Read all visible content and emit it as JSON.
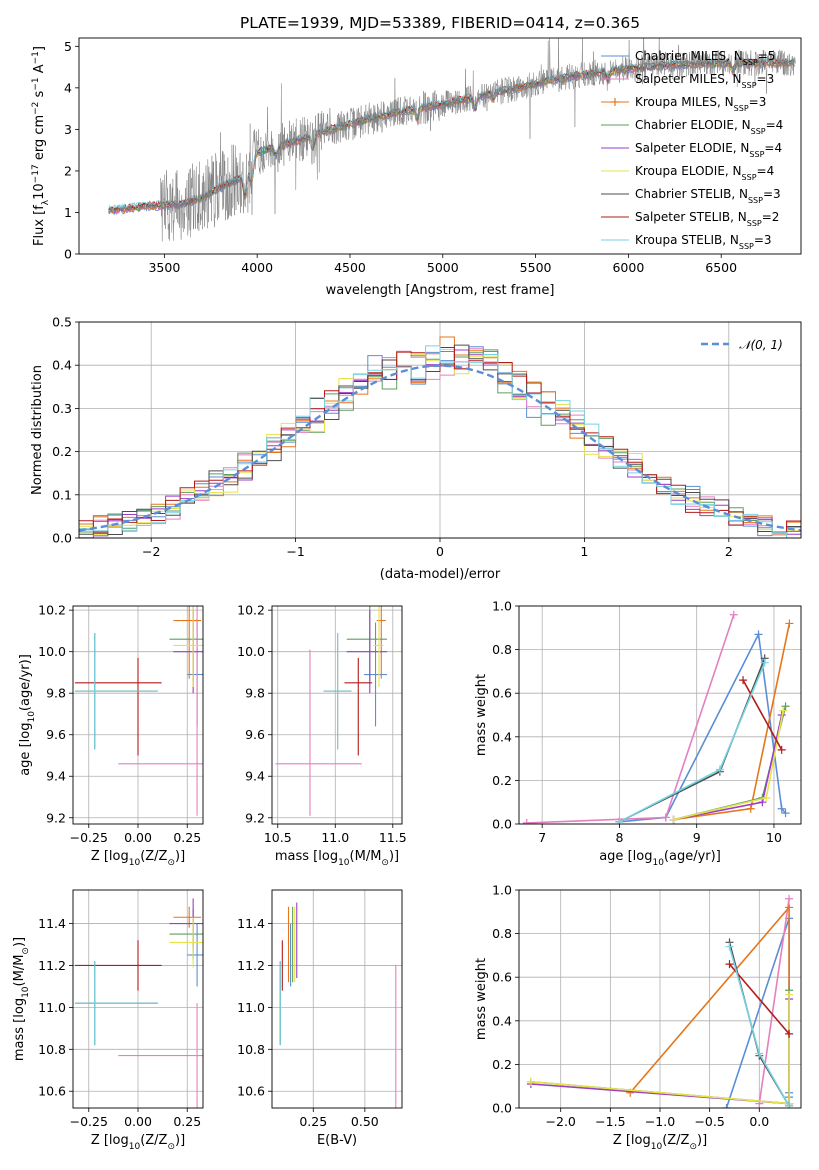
{
  "title": "PLATE=1939, MJD=53389, FIBERID=0414, z=0.365",
  "colors": {
    "data": "#808080",
    "Chabrier MILES": "#5b8ed6",
    "Salpeter MILES": "#e67fc1",
    "Kroupa MILES": "#e6761c",
    "Chabrier ELODIE": "#5f9e5f",
    "Salpeter ELODIE": "#9a3fc8",
    "Kroupa ELODIE": "#e6e34a",
    "Chabrier STELIB": "#4d4d4d",
    "Salpeter STELIB": "#b31b1b",
    "Kroupa STELIB": "#76d3e3",
    "gauss": "#5b8ed6"
  },
  "chart_data": [
    {
      "id": "spectrum",
      "type": "line",
      "xlabel": "wavelength [Angstrom, rest frame]",
      "ylabel": "Flux [f",
      "ylabel_sub": "λ",
      "ylabel_rest": "10",
      "ylabel_exp1": "−17",
      "ylabel_mid": " erg cm",
      "ylabel_exp2": "−2",
      "ylabel_mid2": " s",
      "ylabel_exp3": "−1",
      "ylabel_end": " A",
      "ylabel_exp4": "−1",
      "ylabel_close": "]",
      "xlim": [
        3040,
        6930
      ],
      "ylim": [
        0,
        5.2
      ],
      "xticks": [
        "3500",
        "4000",
        "4500",
        "5000",
        "5500",
        "6000",
        "6500"
      ],
      "yticks": [
        "0",
        "1",
        "2",
        "3",
        "4",
        "5"
      ],
      "data_range": [
        3200,
        6900
      ],
      "continuum": [
        [
          3200,
          1.05
        ],
        [
          3400,
          1.15
        ],
        [
          3600,
          1.2
        ],
        [
          3700,
          1.35
        ],
        [
          3800,
          1.6
        ],
        [
          3900,
          1.8
        ],
        [
          3950,
          1.95
        ],
        [
          4000,
          2.45
        ],
        [
          4200,
          2.7
        ],
        [
          4400,
          3.0
        ],
        [
          4600,
          3.25
        ],
        [
          4800,
          3.45
        ],
        [
          5000,
          3.6
        ],
        [
          5200,
          3.8
        ],
        [
          5400,
          4.0
        ],
        [
          5600,
          4.2
        ],
        [
          5800,
          4.35
        ],
        [
          6000,
          4.45
        ],
        [
          6200,
          4.55
        ],
        [
          6500,
          4.6
        ],
        [
          6900,
          4.6
        ]
      ],
      "legend": [
        {
          "name": "Chabrier MILES",
          "N": "5"
        },
        {
          "name": "Salpeter MILES",
          "N": "3"
        },
        {
          "name": "Kroupa MILES",
          "N": "3"
        },
        {
          "name": "Chabrier ELODIE",
          "N": "4"
        },
        {
          "name": "Salpeter ELODIE",
          "N": "4"
        },
        {
          "name": "Kroupa ELODIE",
          "N": "4"
        },
        {
          "name": "Chabrier STELIB",
          "N": "3"
        },
        {
          "name": "Salpeter STELIB",
          "N": "2"
        },
        {
          "name": "Kroupa STELIB",
          "N": "3"
        }
      ],
      "legend_n_label": "N",
      "legend_n_sub": "SSP"
    },
    {
      "id": "residuals",
      "type": "histogram",
      "xlabel": "(data-model)/error",
      "ylabel": "Normed distribution",
      "xlim": [
        -2.5,
        2.5
      ],
      "ylim": [
        0,
        0.5
      ],
      "xticks": [
        -2,
        -1,
        0,
        1,
        2
      ],
      "xtick_labels": [
        "−2",
        "−1",
        "0",
        "1",
        "2"
      ],
      "yticks": [
        "0.0",
        "0.1",
        "0.2",
        "0.3",
        "0.4",
        "0.5"
      ],
      "bin_width": 0.1,
      "legend": "𝒩(0, 1)"
    },
    {
      "id": "age_vs_Z",
      "type": "errorbar",
      "xlabel": "Z [log",
      "xlabel_sub": "10",
      "xlabel_rest": "(Z/Z",
      "xlabel_sub2": "⊙",
      "xlabel_close": ")]",
      "ylabel": "age  [log",
      "ylabel_sub": "10",
      "ylabel_rest": "(age/yr)]",
      "xlim": [
        -0.33,
        0.33
      ],
      "ylim": [
        9.17,
        10.22
      ],
      "xticks": [
        "−0.25",
        "0.00",
        "0.25"
      ],
      "xtick_vals": [
        -0.25,
        0,
        0.25
      ],
      "yticks": [
        "9.2",
        "9.4",
        "9.6",
        "9.8",
        "10.0",
        "10.2"
      ],
      "ytick_vals": [
        9.2,
        9.4,
        9.6,
        9.8,
        10.0,
        10.2
      ],
      "points": [
        {
          "model": "Chabrier MILES",
          "x": 0.3,
          "xerr": [
            0.05,
            0.03
          ],
          "y": 9.89,
          "yerr": [
            0.25,
            0.25
          ]
        },
        {
          "model": "Salpeter MILES",
          "x": 0.3,
          "xerr": [
            0.4,
            0.03
          ],
          "y": 9.46,
          "yerr": [
            0.25,
            0.78
          ]
        },
        {
          "model": "Kroupa MILES",
          "x": 0.26,
          "xerr": [
            0.08,
            0.06
          ],
          "y": 10.15,
          "yerr": [
            0.28,
            0.28
          ]
        },
        {
          "model": "Chabrier ELODIE",
          "x": 0.28,
          "xerr": [
            0.12,
            0.06
          ],
          "y": 10.06,
          "yerr": [
            0.2,
            0.2
          ]
        },
        {
          "model": "Salpeter ELODIE",
          "x": 0.28,
          "xerr": [
            0.1,
            0.06
          ],
          "y": 10.0,
          "yerr": [
            0.2,
            0.2
          ]
        },
        {
          "model": "Kroupa ELODIE",
          "x": 0.28,
          "xerr": [
            0.1,
            0.06
          ],
          "y": 10.03,
          "yerr": [
            0.2,
            0.2
          ]
        },
        {
          "model": "Chabrier STELIB",
          "x": -0.22,
          "xerr": [
            0.1,
            0.32
          ],
          "y": 9.81,
          "yerr": [
            0.28,
            0.28
          ]
        },
        {
          "model": "Salpeter STELIB",
          "x": 0.0,
          "xerr": [
            0.32,
            0.12
          ],
          "y": 9.85,
          "yerr": [
            0.35,
            0.12
          ]
        },
        {
          "model": "Kroupa STELIB",
          "x": -0.22,
          "xerr": [
            0.1,
            0.32
          ],
          "y": 9.81,
          "yerr": [
            0.28,
            0.28
          ]
        }
      ]
    },
    {
      "id": "age_vs_mass",
      "type": "errorbar",
      "xlabel": "mass [log",
      "xlabel_sub": "10",
      "xlabel_rest": "(M/M",
      "xlabel_sub2": "⊙",
      "xlabel_close": ")]",
      "xlim": [
        10.45,
        11.58
      ],
      "ylim": [
        9.17,
        10.22
      ],
      "xticks": [
        "10.5",
        "11.0",
        "11.5"
      ],
      "xtick_vals": [
        10.5,
        11.0,
        11.5
      ],
      "yticks": [
        "9.2",
        "9.4",
        "9.6",
        "9.8",
        "10.0",
        "10.2"
      ],
      "ytick_vals": [
        9.2,
        9.4,
        9.6,
        9.8,
        10.0,
        10.2
      ],
      "points": [
        {
          "model": "Chabrier MILES",
          "x": 11.35,
          "xerr": [
            0.1,
            0.1
          ],
          "y": 9.89,
          "yerr": [
            0.25,
            0.25
          ]
        },
        {
          "model": "Salpeter MILES",
          "x": 10.78,
          "xerr": [
            0.3,
            0.45
          ],
          "y": 9.46,
          "yerr": [
            0.25,
            0.55
          ]
        },
        {
          "model": "Kroupa MILES",
          "x": 11.4,
          "xerr": [
            0.04,
            0.04
          ],
          "y": 10.15,
          "yerr": [
            0.28,
            0.28
          ]
        },
        {
          "model": "Chabrier ELODIE",
          "x": 11.3,
          "xerr": [
            0.2,
            0.15
          ],
          "y": 10.06,
          "yerr": [
            0.2,
            0.2
          ]
        },
        {
          "model": "Salpeter ELODIE",
          "x": 11.3,
          "xerr": [
            0.2,
            0.15
          ],
          "y": 10.0,
          "yerr": [
            0.2,
            0.2
          ]
        },
        {
          "model": "Kroupa ELODIE",
          "x": 11.38,
          "xerr": [
            0.05,
            0.04
          ],
          "y": 10.03,
          "yerr": [
            0.2,
            0.2
          ]
        },
        {
          "model": "Chabrier STELIB",
          "x": 11.02,
          "xerr": [
            0.12,
            0.12
          ],
          "y": 9.81,
          "yerr": [
            0.28,
            0.28
          ]
        },
        {
          "model": "Salpeter STELIB",
          "x": 11.2,
          "xerr": [
            0.12,
            0.12
          ],
          "y": 9.85,
          "yerr": [
            0.35,
            0.12
          ]
        },
        {
          "model": "Kroupa STELIB",
          "x": 11.02,
          "xerr": [
            0.12,
            0.12
          ],
          "y": 9.81,
          "yerr": [
            0.28,
            0.28
          ]
        }
      ]
    },
    {
      "id": "weight_vs_age",
      "type": "line",
      "xlabel": "age  [log",
      "xlabel_sub": "10",
      "xlabel_rest": "(age/yr)]",
      "ylabel": "mass weight",
      "xlim": [
        6.7,
        10.35
      ],
      "ylim": [
        0,
        1.0
      ],
      "xticks": [
        "7",
        "8",
        "9",
        "10"
      ],
      "xtick_vals": [
        7,
        8,
        9,
        10
      ],
      "yticks": [
        "0.0",
        "0.2",
        "0.4",
        "0.6",
        "0.8",
        "1.0"
      ],
      "ytick_vals": [
        0,
        0.2,
        0.4,
        0.6,
        0.8,
        1.0
      ],
      "series": [
        {
          "model": "Chabrier MILES",
          "x": [
            8.0,
            8.6,
            9.8,
            10.1,
            10.15
          ],
          "y": [
            0.01,
            0.03,
            0.87,
            0.07,
            0.05
          ]
        },
        {
          "model": "Salpeter MILES",
          "x": [
            6.8,
            8.6,
            9.48
          ],
          "y": [
            0.005,
            0.03,
            0.96
          ]
        },
        {
          "model": "Kroupa MILES",
          "x": [
            8.7,
            9.7,
            10.2
          ],
          "y": [
            0.02,
            0.07,
            0.92
          ]
        },
        {
          "model": "Chabrier ELODIE",
          "x": [
            8.7,
            9.85,
            10.15
          ],
          "y": [
            0.02,
            0.12,
            0.54
          ]
        },
        {
          "model": "Salpeter ELODIE",
          "x": [
            8.7,
            9.85,
            10.1
          ],
          "y": [
            0.02,
            0.1,
            0.5
          ]
        },
        {
          "model": "Kroupa ELODIE",
          "x": [
            8.7,
            9.9,
            10.12
          ],
          "y": [
            0.02,
            0.12,
            0.52
          ]
        },
        {
          "model": "Chabrier STELIB",
          "x": [
            8.0,
            9.3,
            9.88
          ],
          "y": [
            0.01,
            0.24,
            0.76
          ]
        },
        {
          "model": "Salpeter STELIB",
          "x": [
            9.6,
            10.1
          ],
          "y": [
            0.66,
            0.34
          ]
        },
        {
          "model": "Kroupa STELIB",
          "x": [
            8.0,
            9.3,
            9.88
          ],
          "y": [
            0.01,
            0.25,
            0.74
          ]
        }
      ]
    },
    {
      "id": "mass_vs_Z",
      "type": "errorbar",
      "xlabel": "Z [log",
      "xlabel_sub": "10",
      "xlabel_rest": "(Z/Z",
      "xlabel_sub2": "⊙",
      "xlabel_close": ")]",
      "ylabel": "mass [log",
      "ylabel_sub": "10",
      "ylabel_rest": "(M/M",
      "ylabel_sub2": "⊙",
      "ylabel_close": ")]",
      "xlim": [
        -0.33,
        0.33
      ],
      "ylim": [
        10.52,
        11.56
      ],
      "xticks": [
        "−0.25",
        "0.00",
        "0.25"
      ],
      "xtick_vals": [
        -0.25,
        0,
        0.25
      ],
      "yticks": [
        "10.6",
        "10.8",
        "11.0",
        "11.2",
        "11.4"
      ],
      "ytick_vals": [
        10.6,
        10.8,
        11.0,
        11.2,
        11.4
      ],
      "points": [
        {
          "model": "Chabrier MILES",
          "x": 0.3,
          "xerr": [
            0.05,
            0.03
          ],
          "y": 11.25,
          "yerr": [
            0.15,
            0.15
          ]
        },
        {
          "model": "Salpeter MILES",
          "x": 0.3,
          "xerr": [
            0.4,
            0.03
          ],
          "y": 10.77,
          "yerr": [
            0.25,
            0.25
          ]
        },
        {
          "model": "Kroupa MILES",
          "x": 0.26,
          "xerr": [
            0.08,
            0.06
          ],
          "y": 11.43,
          "yerr": [
            0.05,
            0.05
          ]
        },
        {
          "model": "Chabrier ELODIE",
          "x": 0.28,
          "xerr": [
            0.12,
            0.06
          ],
          "y": 11.35,
          "yerr": [
            0.12,
            0.12
          ]
        },
        {
          "model": "Salpeter ELODIE",
          "x": 0.28,
          "xerr": [
            0.12,
            0.06
          ],
          "y": 11.4,
          "yerr": [
            0.12,
            0.12
          ]
        },
        {
          "model": "Kroupa ELODIE",
          "x": 0.28,
          "xerr": [
            0.12,
            0.06
          ],
          "y": 11.31,
          "yerr": [
            0.12,
            0.12
          ]
        },
        {
          "model": "Chabrier STELIB",
          "x": -0.22,
          "xerr": [
            0.1,
            0.32
          ],
          "y": 11.02,
          "yerr": [
            0.2,
            0.2
          ]
        },
        {
          "model": "Salpeter STELIB",
          "x": 0.0,
          "xerr": [
            0.32,
            0.12
          ],
          "y": 11.2,
          "yerr": [
            0.12,
            0.12
          ]
        },
        {
          "model": "Kroupa STELIB",
          "x": -0.22,
          "xerr": [
            0.1,
            0.32
          ],
          "y": 11.02,
          "yerr": [
            0.2,
            0.2
          ]
        }
      ]
    },
    {
      "id": "mass_vs_ebv",
      "type": "errorbar",
      "xlabel": "E(B-V)",
      "xlim": [
        0.05,
        0.68
      ],
      "ylim": [
        10.52,
        11.56
      ],
      "xticks": [
        "0.25",
        "0.50"
      ],
      "xtick_vals": [
        0.25,
        0.5
      ],
      "yticks": [
        "10.6",
        "10.8",
        "11.0",
        "11.2",
        "11.4"
      ],
      "ytick_vals": [
        10.6,
        10.8,
        11.0,
        11.2,
        11.4
      ],
      "points": [
        {
          "model": "Chabrier MILES",
          "x": 0.14,
          "y": 11.25,
          "yerr": [
            0.15,
            0.15
          ]
        },
        {
          "model": "Salpeter MILES",
          "x": 0.65,
          "y": 10.85,
          "yerr": [
            0.35,
            0.35
          ]
        },
        {
          "model": "Kroupa MILES",
          "x": 0.13,
          "y": 11.3,
          "yerr": [
            0.18,
            0.18
          ]
        },
        {
          "model": "Chabrier ELODIE",
          "x": 0.15,
          "y": 11.3,
          "yerr": [
            0.18,
            0.18
          ]
        },
        {
          "model": "Salpeter ELODIE",
          "x": 0.17,
          "y": 11.32,
          "yerr": [
            0.18,
            0.18
          ]
        },
        {
          "model": "Kroupa ELODIE",
          "x": 0.16,
          "y": 11.3,
          "yerr": [
            0.18,
            0.18
          ]
        },
        {
          "model": "Chabrier STELIB",
          "x": 0.09,
          "y": 11.02,
          "yerr": [
            0.2,
            0.2
          ]
        },
        {
          "model": "Salpeter STELIB",
          "x": 0.1,
          "y": 11.2,
          "yerr": [
            0.12,
            0.12
          ]
        },
        {
          "model": "Kroupa STELIB",
          "x": 0.09,
          "y": 11.02,
          "yerr": [
            0.2,
            0.2
          ]
        }
      ]
    },
    {
      "id": "weight_vs_Z",
      "type": "line",
      "xlabel": "Z [log",
      "xlabel_sub": "10",
      "xlabel_rest": "(Z/Z",
      "xlabel_sub2": "⊙",
      "xlabel_close": ")]",
      "ylabel": "mass weight",
      "xlim": [
        -2.42,
        0.42
      ],
      "ylim": [
        0,
        1.0
      ],
      "xticks": [
        "−2.0",
        "−1.5",
        "−1.0",
        "−0.5",
        "0.0"
      ],
      "xtick_vals": [
        -2,
        -1.5,
        -1,
        -0.5,
        0
      ],
      "yticks": [
        "0.0",
        "0.2",
        "0.4",
        "0.6",
        "0.8",
        "1.0"
      ],
      "ytick_vals": [
        0,
        0.2,
        0.4,
        0.6,
        0.8,
        1.0
      ],
      "series": [
        {
          "model": "Chabrier MILES",
          "x": [
            -0.33,
            0.3,
            0.3,
            0.3
          ],
          "y": [
            0.0,
            0.87,
            0.07,
            0.05
          ]
        },
        {
          "model": "Salpeter MILES",
          "x": [
            0.0,
            0.3
          ],
          "y": [
            0.02,
            0.96
          ]
        },
        {
          "model": "Kroupa MILES",
          "x": [
            -1.3,
            0.3,
            0.3
          ],
          "y": [
            0.07,
            0.92,
            0.02
          ]
        },
        {
          "model": "Chabrier ELODIE",
          "x": [
            -2.3,
            0.3,
            0.3
          ],
          "y": [
            0.12,
            0.02,
            0.54
          ]
        },
        {
          "model": "Salpeter ELODIE",
          "x": [
            -2.3,
            0.3,
            0.3
          ],
          "y": [
            0.11,
            0.02,
            0.5
          ]
        },
        {
          "model": "Kroupa ELODIE",
          "x": [
            -2.3,
            0.3,
            0.3
          ],
          "y": [
            0.12,
            0.02,
            0.52
          ]
        },
        {
          "model": "Chabrier STELIB",
          "x": [
            -0.3,
            0.0,
            0.3
          ],
          "y": [
            0.76,
            0.24,
            0.01
          ]
        },
        {
          "model": "Salpeter STELIB",
          "x": [
            -0.3,
            0.3
          ],
          "y": [
            0.66,
            0.34
          ]
        },
        {
          "model": "Kroupa STELIB",
          "x": [
            -0.3,
            0.0,
            0.3
          ],
          "y": [
            0.74,
            0.25,
            0.01
          ]
        }
      ]
    }
  ]
}
